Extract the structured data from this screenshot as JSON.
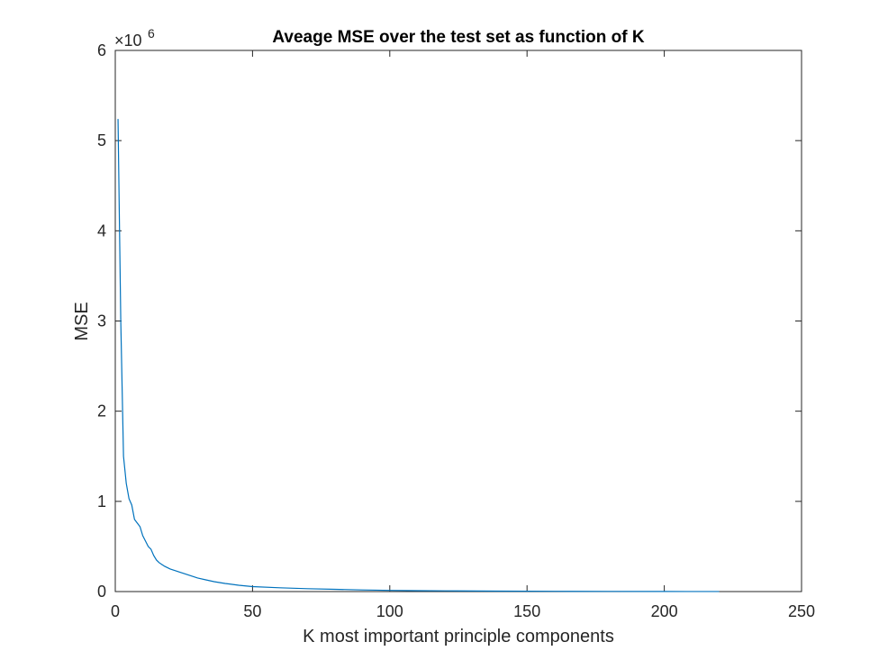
{
  "chart_data": {
    "type": "line",
    "title": "Aveage MSE over the test set as function of K",
    "xlabel": "K most important principle components",
    "ylabel": "MSE",
    "y_exponent_base": "×10",
    "y_exponent_power": "6",
    "xlim": [
      0,
      250
    ],
    "ylim": [
      0,
      6000000
    ],
    "xticks": [
      0,
      50,
      100,
      150,
      200,
      250
    ],
    "xtick_labels": [
      "0",
      "50",
      "100",
      "150",
      "200",
      "250"
    ],
    "yticks": [
      0,
      1000000,
      2000000,
      3000000,
      4000000,
      5000000,
      6000000
    ],
    "ytick_labels": [
      "0",
      "1",
      "2",
      "3",
      "4",
      "5",
      "6"
    ],
    "grid": false,
    "line_color": "#0072BD",
    "series": [
      {
        "x": [
          1,
          2,
          3,
          4,
          5,
          6,
          7,
          8,
          9,
          10,
          11,
          12,
          13,
          14,
          15,
          16,
          17,
          18,
          20,
          22,
          25,
          28,
          30,
          33,
          36,
          40,
          45,
          50,
          60,
          70,
          80,
          90,
          100,
          110,
          120,
          140,
          160,
          180,
          200,
          220
        ],
        "y": [
          5240000,
          3000000,
          1500000,
          1200000,
          1030000,
          960000,
          800000,
          760000,
          720000,
          620000,
          560000,
          500000,
          470000,
          400000,
          350000,
          320000,
          300000,
          280000,
          250000,
          230000,
          200000,
          170000,
          150000,
          130000,
          110000,
          90000,
          70000,
          55000,
          42000,
          32000,
          25000,
          18000,
          13000,
          10000,
          8000,
          5000,
          3000,
          2000,
          1000,
          500
        ]
      }
    ]
  }
}
